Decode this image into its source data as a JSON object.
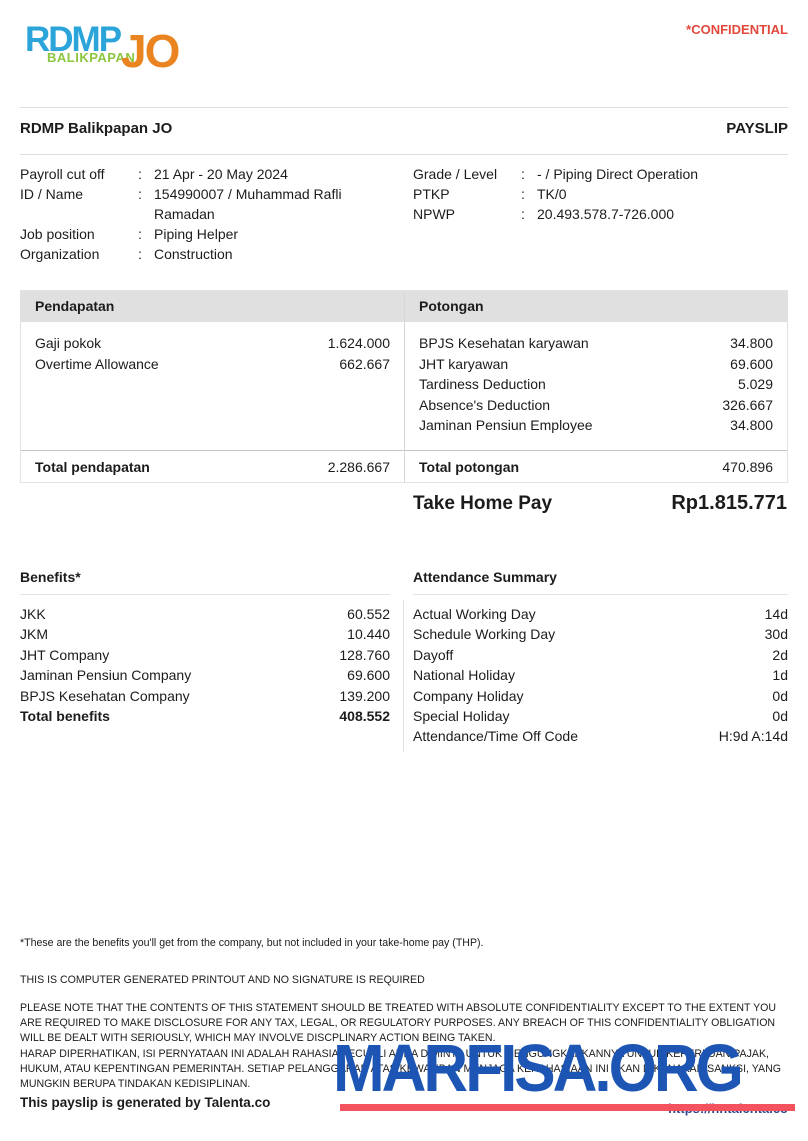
{
  "meta": {
    "colon": ":"
  },
  "header": {
    "confidential": "*CONFIDENTIAL",
    "company": "RDMP Balikpapan JO",
    "doc_title": "PAYSLIP"
  },
  "logo": {
    "rdmp": "RDMP",
    "balikpapan": "BALIKPAPAN",
    "jo": "JO",
    "colors": {
      "rdmp": "#2ba4da",
      "balikpapan": "#8cc63f",
      "jo": "#e98420"
    }
  },
  "employee": {
    "left": [
      {
        "label": "Payroll cut off",
        "value": "21 Apr - 20 May 2024"
      },
      {
        "label": "ID / Name",
        "value": "154990007 / Muhammad Rafli Ramadan"
      },
      {
        "label": "Job position",
        "value": "Piping Helper"
      },
      {
        "label": "Organization",
        "value": "Construction"
      }
    ],
    "right": [
      {
        "label": "Grade / Level",
        "value": "- / Piping Direct Operation"
      },
      {
        "label": "PTKP",
        "value": "TK/0"
      },
      {
        "label": "NPWP",
        "value": "20.493.578.7-726.000"
      }
    ]
  },
  "earnings": {
    "header": "Pendapatan",
    "rows": [
      {
        "label": "Gaji pokok",
        "value": "1.624.000"
      },
      {
        "label": "Overtime Allowance",
        "value": "662.667"
      }
    ],
    "total_label": "Total pendapatan",
    "total_value": "2.286.667"
  },
  "deductions": {
    "header": "Potongan",
    "rows": [
      {
        "label": "BPJS Kesehatan karyawan",
        "value": "34.800"
      },
      {
        "label": "JHT karyawan",
        "value": "69.600"
      },
      {
        "label": "Tardiness Deduction",
        "value": "5.029"
      },
      {
        "label": "Absence's Deduction",
        "value": "326.667"
      },
      {
        "label": "Jaminan Pensiun Employee",
        "value": "34.800"
      }
    ],
    "total_label": "Total potongan",
    "total_value": "470.896"
  },
  "take_home_pay": {
    "label": "Take Home Pay",
    "value": "Rp1.815.771"
  },
  "benefits": {
    "header": "Benefits*",
    "rows": [
      {
        "label": "JKK",
        "value": "60.552"
      },
      {
        "label": "JKM",
        "value": "10.440"
      },
      {
        "label": "JHT Company",
        "value": "128.760"
      },
      {
        "label": "Jaminan Pensiun Company",
        "value": "69.600"
      },
      {
        "label": "BPJS Kesehatan Company",
        "value": "139.200"
      },
      {
        "label": "Total benefits",
        "value": "408.552"
      }
    ]
  },
  "attendance": {
    "header": "Attendance Summary",
    "rows": [
      {
        "label": "Actual Working Day",
        "value": "14d"
      },
      {
        "label": "Schedule Working Day",
        "value": "30d"
      },
      {
        "label": "Dayoff",
        "value": "2d"
      },
      {
        "label": "National Holiday",
        "value": "1d"
      },
      {
        "label": "Company Holiday",
        "value": "0d"
      },
      {
        "label": "Special Holiday",
        "value": "0d"
      },
      {
        "label": "Attendance/Time Off Code",
        "value": "H:9d A:14d"
      }
    ]
  },
  "footnotes": {
    "benefits_note": "*These are the benefits you'll get from the company, but not included in your take-home pay (THP).",
    "generated_note": "THIS IS COMPUTER GENERATED PRINTOUT AND NO SIGNATURE IS REQUIRED",
    "confidentiality_en": "PLEASE NOTE THAT THE CONTENTS OF THIS STATEMENT SHOULD BE TREATED WITH ABSOLUTE CONFIDENTIALITY EXCEPT TO THE EXTENT YOU ARE REQUIRED TO MAKE DISCLOSURE FOR ANY TAX, LEGAL, OR REGULATORY PURPOSES. ANY BREACH OF THIS CONFIDENTIALITY OBLIGATION WILL BE DEALT WITH SERIOUSLY, WHICH MAY INVOLVE DISCPLINARY ACTION BEING TAKEN.",
    "confidentiality_id": "HARAP DIPERHATIKAN, ISI PERNYATAAN INI ADALAH RAHASIA KECUALI ANDA DIMINTA UNTUK MENGUNGKAPKANNYA UNTUK KEPERLUAN PAJAK, HUKUM, ATAU KEPENTINGAN PEMERINTAH. SETIAP PELANGGARAN ATAS KEWAJIBAN MENJAGA KERAHASIAAN INI AKAN DIKENAKAN SANKSI, YANG MUNGKIN BERUPA TINDAKAN KEDISIPLINAN.",
    "generator": "This payslip is generated by Talenta.co",
    "url": "https://hr.talenta.co"
  },
  "watermark": {
    "text": "MARFISA.ORG",
    "color": "#1c55b4",
    "bar_color": "#f4525e"
  }
}
